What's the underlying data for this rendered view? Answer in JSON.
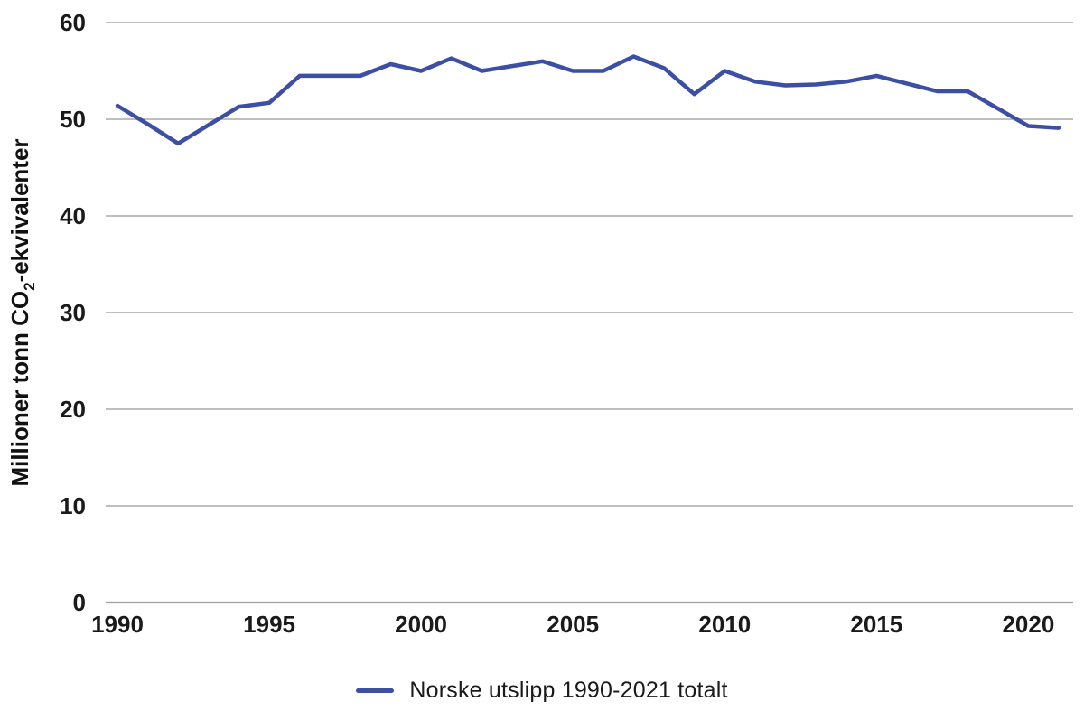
{
  "page": {
    "background": "#ffffff"
  },
  "chart_data": {
    "type": "line",
    "title": "",
    "xlabel": "",
    "ylabel": "Millioner tonn CO2-ekvivalenter",
    "ylabel_parts": {
      "prefix": "Millioner tonn CO",
      "sub": "2",
      "suffix": "-ekvivalenter"
    },
    "x": [
      1990,
      1991,
      1992,
      1993,
      1994,
      1995,
      1996,
      1997,
      1998,
      1999,
      2000,
      2001,
      2002,
      2003,
      2004,
      2005,
      2006,
      2007,
      2008,
      2009,
      2010,
      2011,
      2012,
      2013,
      2014,
      2015,
      2016,
      2017,
      2018,
      2019,
      2020,
      2021
    ],
    "series": [
      {
        "name": "Norske utslipp 1990-2021 totalt",
        "color": "#3c4fa5",
        "values": [
          51.4,
          49.5,
          47.5,
          49.4,
          51.3,
          51.7,
          54.5,
          54.5,
          54.5,
          55.7,
          55.0,
          56.3,
          55.0,
          55.5,
          56.0,
          55.0,
          55.0,
          56.5,
          55.3,
          52.6,
          55.0,
          53.9,
          53.5,
          53.6,
          53.9,
          54.5,
          53.7,
          52.9,
          52.9,
          51.1,
          49.3,
          49.1
        ]
      }
    ],
    "ylim": [
      0,
      60
    ],
    "xlim": [
      1990,
      2021
    ],
    "y_ticks": [
      0,
      10,
      20,
      30,
      40,
      50,
      60
    ],
    "x_ticks": [
      1990,
      1995,
      2000,
      2005,
      2010,
      2015,
      2020
    ],
    "grid": "horizontal",
    "gridline_color": "#a9a9a9",
    "axis_line_color": "#9e9e9e",
    "text_color": "#1a1a1a",
    "legend_position": "bottom"
  }
}
